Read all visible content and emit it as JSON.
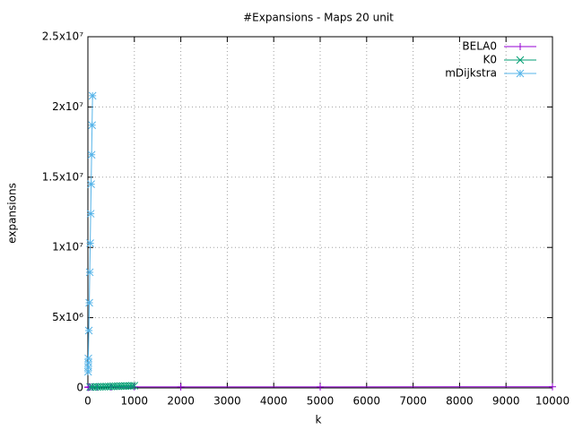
{
  "chart_data": {
    "type": "line",
    "title": "#Expansions - Maps 20 unit",
    "x_label": "k",
    "y_label": "expansions",
    "xlim": [
      0,
      10000
    ],
    "xticks": [
      0,
      1000,
      2000,
      3000,
      4000,
      5000,
      6000,
      7000,
      8000,
      9000,
      10000
    ],
    "ylim": [
      0,
      25000000
    ],
    "yticks": [
      0,
      {
        "value": 5000000,
        "label": "5x10⁶"
      },
      {
        "value": 10000000,
        "label": "1x10⁷"
      },
      {
        "value": 15000000,
        "label": "1.5x10⁷"
      },
      {
        "value": 20000000,
        "label": "2x10⁷"
      },
      {
        "value": 25000000,
        "label": "2.5x10⁷"
      }
    ],
    "grid": true,
    "legend": "top-right",
    "series": [
      {
        "name": "BELA0",
        "color": "#9400d3",
        "marker": "plus",
        "x": [
          1,
          5,
          10,
          20,
          50,
          100,
          200,
          500,
          1000,
          2000,
          5000,
          10000
        ],
        "values": [
          50000,
          50000,
          55000,
          55000,
          60000,
          60000,
          65000,
          65000,
          70000,
          70000,
          75000,
          80000
        ]
      },
      {
        "name": "K0",
        "color": "#009e73",
        "marker": "cross",
        "x": [
          50,
          100,
          150,
          200,
          250,
          300,
          350,
          400,
          450,
          500,
          550,
          600,
          650,
          700,
          750,
          800,
          850,
          900,
          950,
          1000
        ],
        "values": [
          60000,
          65000,
          70000,
          75000,
          80000,
          85000,
          90000,
          95000,
          100000,
          105000,
          110000,
          115000,
          120000,
          125000,
          130000,
          135000,
          140000,
          145000,
          150000,
          155000
        ]
      },
      {
        "name": "mDijkstra",
        "color": "#56b4e9",
        "marker": "star",
        "x": [
          5,
          7,
          9,
          10,
          20,
          30,
          40,
          50,
          60,
          70,
          80,
          90,
          100
        ],
        "values": [
          1150000,
          1470000,
          1790000,
          2100000,
          4080000,
          6060000,
          8230000,
          10300000,
          12400000,
          14500000,
          16600000,
          18700000,
          20800000
        ]
      }
    ]
  }
}
